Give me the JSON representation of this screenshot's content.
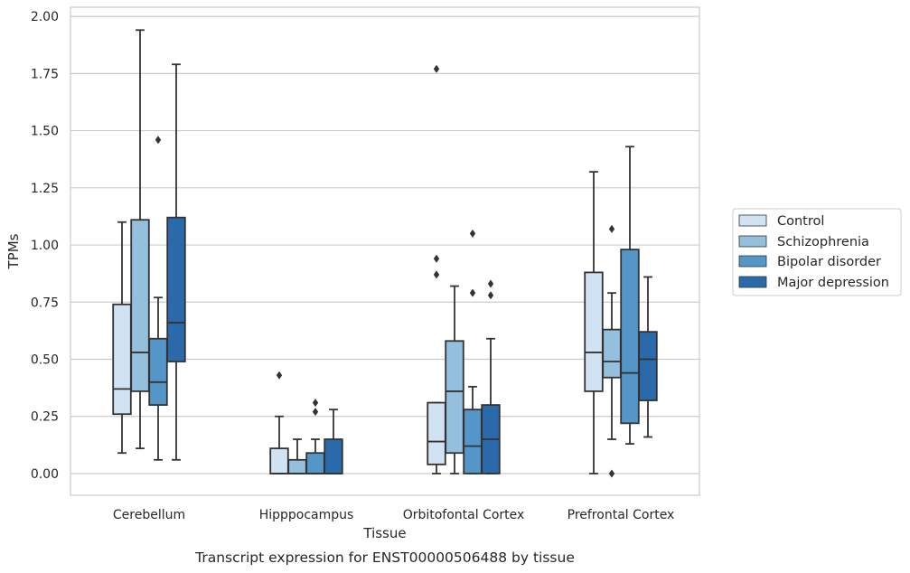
{
  "chart_data": {
    "type": "box",
    "caption": "Transcript expression for ENST00000506488 by tissue",
    "xlabel": "Tissue",
    "ylabel": "TPMs",
    "ylim": [
      -0.095,
      2.04
    ],
    "yticks": [
      "0.00",
      "0.25",
      "0.50",
      "0.75",
      "1.00",
      "1.25",
      "1.50",
      "1.75",
      "2.00"
    ],
    "categories": [
      "Cerebellum",
      "Hipppocampus",
      "Orbitofontal Cortex",
      "Prefrontal Cortex"
    ],
    "grid": "horizontal",
    "legend_position": "right",
    "series": [
      {
        "name": "Control",
        "color": "#d1e2f2",
        "boxes": [
          {
            "q1": 0.26,
            "median": 0.37,
            "q3": 0.74,
            "whisker_low": 0.09,
            "whisker_high": 1.1,
            "outliers": []
          },
          {
            "q1": 0.0,
            "median": 0.0,
            "q3": 0.11,
            "whisker_low": 0.0,
            "whisker_high": 0.25,
            "outliers": [
              0.43
            ]
          },
          {
            "q1": 0.04,
            "median": 0.14,
            "q3": 0.31,
            "whisker_low": 0.0,
            "whisker_high": 0.31,
            "outliers": [
              0.87,
              0.94,
              1.77
            ]
          },
          {
            "q1": 0.36,
            "median": 0.53,
            "q3": 0.88,
            "whisker_low": 0.0,
            "whisker_high": 1.32,
            "outliers": []
          }
        ]
      },
      {
        "name": "Schizophrenia",
        "color": "#94bfdd",
        "boxes": [
          {
            "q1": 0.36,
            "median": 0.53,
            "q3": 1.11,
            "whisker_low": 0.11,
            "whisker_high": 1.94,
            "outliers": []
          },
          {
            "q1": 0.0,
            "median": 0.0,
            "q3": 0.06,
            "whisker_low": 0.0,
            "whisker_high": 0.15,
            "outliers": []
          },
          {
            "q1": 0.09,
            "median": 0.36,
            "q3": 0.58,
            "whisker_low": 0.0,
            "whisker_high": 0.82,
            "outliers": []
          },
          {
            "q1": 0.42,
            "median": 0.49,
            "q3": 0.63,
            "whisker_low": 0.15,
            "whisker_high": 0.79,
            "outliers": [
              0.0,
              1.07
            ]
          }
        ]
      },
      {
        "name": "Bipolar disorder",
        "color": "#5596c8",
        "boxes": [
          {
            "q1": 0.3,
            "median": 0.4,
            "q3": 0.59,
            "whisker_low": 0.06,
            "whisker_high": 0.77,
            "outliers": [
              1.46
            ]
          },
          {
            "q1": 0.0,
            "median": 0.0,
            "q3": 0.09,
            "whisker_low": 0.0,
            "whisker_high": 0.15,
            "outliers": [
              0.27,
              0.31
            ]
          },
          {
            "q1": 0.0,
            "median": 0.12,
            "q3": 0.28,
            "whisker_low": 0.0,
            "whisker_high": 0.38,
            "outliers": [
              0.79,
              1.05
            ]
          },
          {
            "q1": 0.22,
            "median": 0.44,
            "q3": 0.98,
            "whisker_low": 0.13,
            "whisker_high": 1.43,
            "outliers": []
          }
        ]
      },
      {
        "name": "Major depression",
        "color": "#2b6aaa",
        "boxes": [
          {
            "q1": 0.49,
            "median": 0.66,
            "q3": 1.12,
            "whisker_low": 0.06,
            "whisker_high": 1.79,
            "outliers": []
          },
          {
            "q1": 0.0,
            "median": 0.0,
            "q3": 0.15,
            "whisker_low": 0.0,
            "whisker_high": 0.28,
            "outliers": []
          },
          {
            "q1": 0.0,
            "median": 0.15,
            "q3": 0.3,
            "whisker_low": 0.0,
            "whisker_high": 0.59,
            "outliers": [
              0.78,
              0.83
            ]
          },
          {
            "q1": 0.32,
            "median": 0.5,
            "q3": 0.62,
            "whisker_low": 0.16,
            "whisker_high": 0.86,
            "outliers": []
          }
        ]
      }
    ]
  }
}
